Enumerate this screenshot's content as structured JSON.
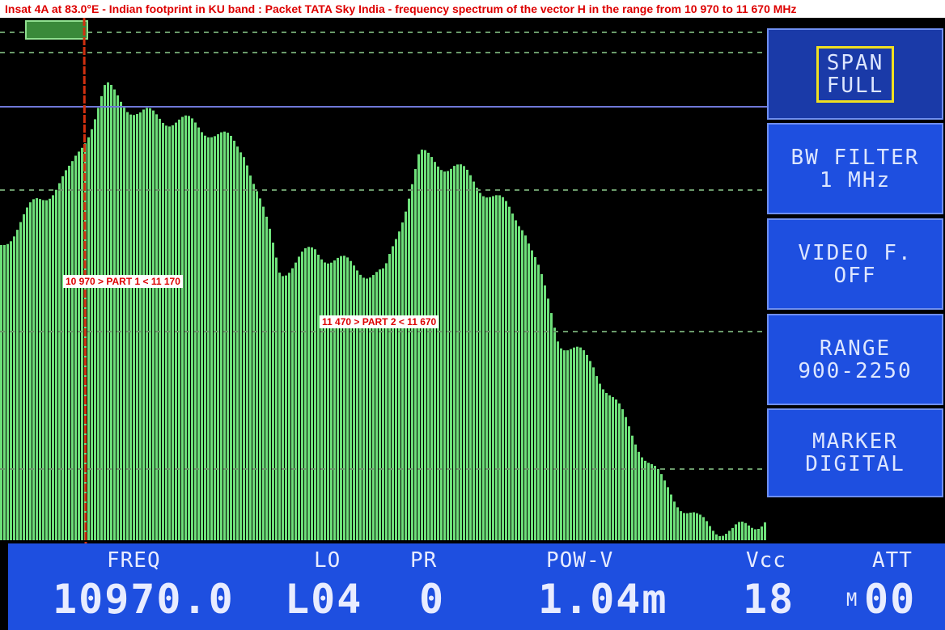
{
  "title": "Insat 4A at 83.0°E - Indian footprint in KU band : Packet TATA Sky India - frequency spectrum of the vector H in the range from 10 970 to 11 670 MHz",
  "annotations": [
    "10 970 > PART 1 < 11 170",
    "11 470 > PART 2 < 11 670"
  ],
  "menu": [
    {
      "line1": "SPAN",
      "line2": "FULL",
      "selected": true
    },
    {
      "line1": "BW FILTER",
      "line2": "1 MHz"
    },
    {
      "line1": "VIDEO F.",
      "line2": "OFF"
    },
    {
      "line1": "RANGE",
      "line2": "900-2250"
    },
    {
      "line1": "MARKER",
      "line2": "DIGITAL"
    }
  ],
  "status": {
    "freq_label": "FREQ",
    "freq_value": "10970.0",
    "lo_label": "LO",
    "lo_value": "L04",
    "pr_label": "PR",
    "pr_value": "0",
    "pow_label": "POW-V",
    "pow_value": "1.04m",
    "vcc_label": "Vcc",
    "vcc_value": "18",
    "att_label": "ATT",
    "att_prefix": "M",
    "att_value": "00"
  },
  "colors": {
    "trace": "#6ee07a",
    "panel": "#1e4fe0",
    "marker": "#d03010",
    "annotation_text": "#dd0000"
  },
  "spectrum_profile": [
    0.58,
    0.66,
    0.72,
    0.88,
    0.83,
    0.82,
    0.8,
    0.76,
    0.53,
    0.57,
    0.54,
    0.52,
    0.75,
    0.73,
    0.68,
    0.62,
    0.4,
    0.35,
    0.23,
    0.12,
    0.05,
    0.03,
    0.06
  ]
}
